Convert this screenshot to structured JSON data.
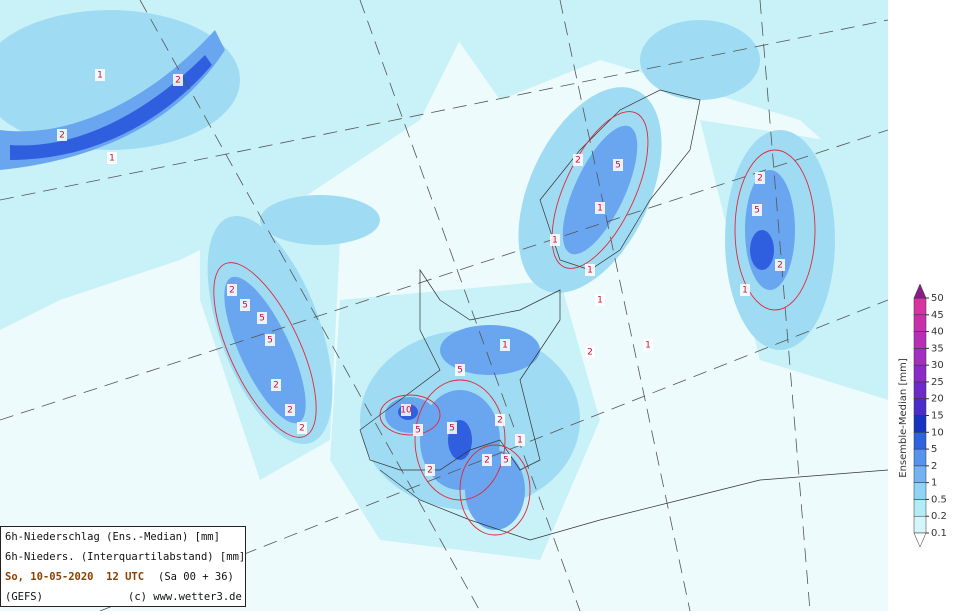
{
  "map": {
    "info": {
      "line1": "6h-Niederschlag (Ens.-Median) [mm]",
      "line2": "6h-Nieders. (Interquartilabstand) [mm]",
      "date": "So, 10-05-2020  12 UTC",
      "run": "(Sa 00 + 36)",
      "model": "(GEFS)",
      "credit": "(c) www.wetter3.de"
    },
    "contour_labels": [
      2,
      2,
      1,
      1,
      5,
      5,
      2,
      2,
      2,
      5,
      2,
      5,
      10,
      5,
      5,
      2,
      2,
      5,
      2,
      1,
      1,
      2,
      1,
      5,
      1,
      2,
      1,
      1,
      2,
      5,
      2,
      1,
      1
    ],
    "legend": {
      "title": "Ensemble-Median [mm]",
      "levels": [
        0.1,
        0.2,
        0.5,
        1,
        2,
        5,
        10,
        15,
        20,
        25,
        30,
        35,
        40,
        45,
        50
      ],
      "colors": [
        "#d4f6fb",
        "#b4ecf6",
        "#8fd4f4",
        "#73b3f3",
        "#5693ee",
        "#2f62de",
        "#1833c2",
        "#4a2cc9",
        "#6c2bc9",
        "#8b2bc5",
        "#a12fc0",
        "#b62fb6",
        "#c830aa",
        "#d8339e"
      ],
      "top_color": "#8a1d8a"
    }
  }
}
